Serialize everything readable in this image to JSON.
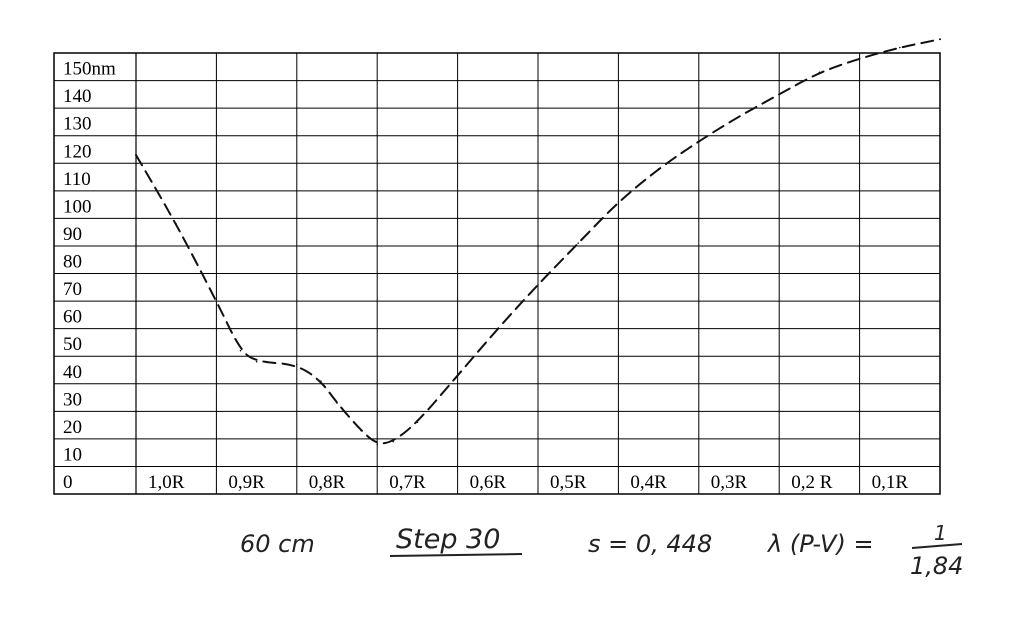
{
  "chart_data": {
    "type": "line",
    "y_unit_label": "150nm",
    "y_tick_labels": [
      "0",
      "10",
      "20",
      "30",
      "40",
      "50",
      "60",
      "70",
      "80",
      "90",
      "100",
      "110",
      "120",
      "130",
      "140",
      "150nm"
    ],
    "x_tick_labels": [
      "1,0R",
      "0,9R",
      "0,8R",
      "0,7R",
      "0,6R",
      "0,5R",
      "0,4R",
      "0,3R",
      "0,2 R",
      "0,1R"
    ],
    "ylim": [
      0,
      150
    ],
    "xlim": [
      1.0,
      0.0
    ],
    "grid": true,
    "series": [
      {
        "style": "dashed",
        "color": "#111111",
        "x": [
          1.0,
          0.95,
          0.9,
          0.87,
          0.85,
          0.8,
          0.77,
          0.75,
          0.72,
          0.7,
          0.68,
          0.65,
          0.6,
          0.55,
          0.5,
          0.45,
          0.4,
          0.35,
          0.3,
          0.25,
          0.2,
          0.15,
          0.1,
          0.05,
          0.0
        ],
        "y": [
          113,
          88,
          60,
          42,
          38,
          37,
          31,
          23,
          13,
          8,
          9,
          16,
          33,
          50,
          66,
          81,
          96,
          108,
          118,
          127,
          135,
          143,
          148,
          152,
          155
        ]
      }
    ]
  },
  "annotations": {
    "distance": "60 cm",
    "step": "Step 30",
    "s_value": "s = 0, 448",
    "lambda_label": "λ (P-V) =",
    "lambda_num": "1",
    "lambda_den": "1,84"
  },
  "colors": {
    "grid": "#000000",
    "line": "#111111",
    "hand": "#222222"
  }
}
